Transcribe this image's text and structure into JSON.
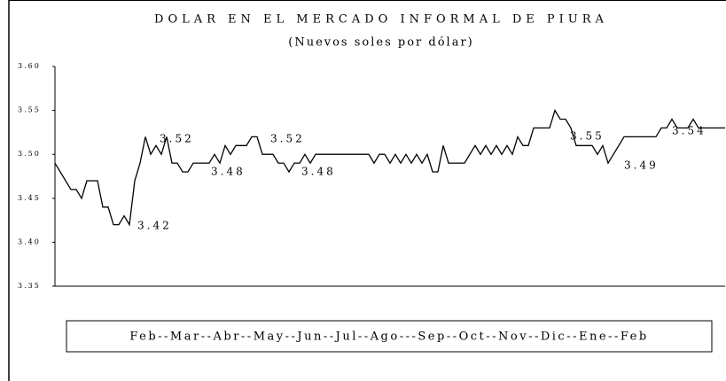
{
  "chart_data": {
    "type": "line",
    "title": "DOLAR EN EL MERCADO INFORMAL DE PIURA",
    "subtitle": "(Nuevos soles por dólar)",
    "xlabel": "Feb--Mar--Abr--May--Jun--Jul--Ago---Sep--Oct--Nov--Dic--Ene--Feb",
    "color": "#000000",
    "ylim": [
      3.35,
      3.6
    ],
    "yticks": [
      {
        "value": 3.6,
        "label": "3.60"
      },
      3.55,
      {
        "value": 3.5,
        "label": "3.50"
      },
      3.45,
      {
        "value": 3.4,
        "label": "3.40"
      },
      3.35
    ],
    "values": [
      3.49,
      3.48,
      3.47,
      3.46,
      3.46,
      3.45,
      3.47,
      3.47,
      3.47,
      3.44,
      3.44,
      3.42,
      3.42,
      3.43,
      3.42,
      3.47,
      3.49,
      3.52,
      3.5,
      3.51,
      3.5,
      3.52,
      3.49,
      3.49,
      3.48,
      3.48,
      3.49,
      3.49,
      3.49,
      3.49,
      3.5,
      3.49,
      3.51,
      3.5,
      3.51,
      3.51,
      3.51,
      3.52,
      3.52,
      3.5,
      3.5,
      3.5,
      3.49,
      3.49,
      3.48,
      3.49,
      3.49,
      3.5,
      3.49,
      3.5,
      3.5,
      3.5,
      3.5,
      3.5,
      3.5,
      3.5,
      3.5,
      3.5,
      3.5,
      3.5,
      3.49,
      3.5,
      3.5,
      3.49,
      3.5,
      3.49,
      3.5,
      3.49,
      3.5,
      3.49,
      3.5,
      3.48,
      3.48,
      3.51,
      3.49,
      3.49,
      3.49,
      3.49,
      3.5,
      3.51,
      3.5,
      3.51,
      3.5,
      3.51,
      3.5,
      3.51,
      3.5,
      3.52,
      3.51,
      3.51,
      3.53,
      3.53,
      3.53,
      3.53,
      3.55,
      3.54,
      3.54,
      3.53,
      3.51,
      3.51,
      3.51,
      3.51,
      3.5,
      3.51,
      3.49,
      3.5,
      3.51,
      3.52,
      3.52,
      3.52,
      3.52,
      3.52,
      3.52,
      3.52,
      3.53,
      3.53,
      3.54,
      3.53,
      3.53,
      3.53,
      3.54,
      3.53,
      3.53,
      3.53,
      3.53,
      3.53,
      3.53
    ],
    "annotations": [
      "3.52",
      "3.48",
      "3.42",
      "3.52",
      "3.48",
      "3.55",
      "3.49",
      "3.54"
    ]
  }
}
